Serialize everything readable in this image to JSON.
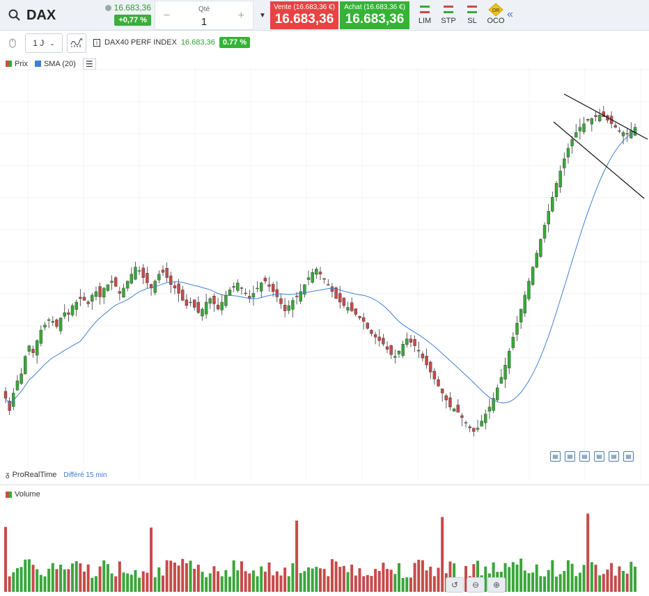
{
  "header": {
    "ticker": "DAX",
    "mini_price": "16.683,36",
    "mini_change": "+0,77 %",
    "qty_label": "Qté",
    "qty_value": "1",
    "qty_minus": "−",
    "qty_plus": "+",
    "sell_label": "Vente (16.683,36 €)",
    "sell_price": "16.683,36",
    "buy_label": "Achat (16.683,36 €)",
    "buy_price": "16.683,36",
    "orders": [
      "LIM",
      "STP",
      "SL",
      "OCO"
    ],
    "oco_badge": "OR"
  },
  "toolbar": {
    "period": "1 J",
    "instrument_name": "DAX40 PERF INDEX",
    "instrument_price": "16.683,36",
    "instrument_change": "0.77 %"
  },
  "legend": {
    "price": "Prix",
    "sma": "SMA (20)"
  },
  "source": {
    "provider": "ProRealTime",
    "delay": "Différé 15 min"
  },
  "volume_legend": "Volume",
  "colors": {
    "up": "#3aa63a",
    "down": "#c74a4a",
    "sma": "#3f7fd6",
    "buy": "#35b335",
    "sell": "#e64343",
    "accent": "#3c7bd1"
  },
  "icons": [
    "search-icon",
    "status-icon",
    "chevron-down-icon",
    "lim-order-icon",
    "stp-order-icon",
    "sl-order-icon",
    "oco-order-icon",
    "collapse-left-icon",
    "mouse-icon",
    "indicator-icon",
    "info-icon",
    "list-icon",
    "chart-style-icon",
    "undo-icon",
    "zoom-out-icon",
    "zoom-in-icon"
  ],
  "chart_data": {
    "type": "candlestick",
    "series": [
      {
        "name": "Prix",
        "values": [
          14750,
          14680,
          14780,
          14850,
          14890,
          14990,
          15050,
          15010,
          15080,
          15140,
          15170,
          15200,
          15190,
          15160,
          15210,
          15240,
          15230,
          15280,
          15300,
          15320,
          15310,
          15290,
          15340,
          15360,
          15330,
          15380,
          15400,
          15420,
          15390,
          15350,
          15380,
          15420,
          15460,
          15500,
          15480,
          15440,
          15410,
          15380,
          15420,
          15460,
          15470,
          15440,
          15400,
          15380,
          15350,
          15310,
          15280,
          15300,
          15270,
          15240,
          15260,
          15300,
          15320,
          15290,
          15260,
          15300,
          15340,
          15370,
          15390,
          15410,
          15380,
          15350,
          15320,
          15350,
          15380,
          15410,
          15420,
          15390,
          15360,
          15330,
          15290,
          15250,
          15280,
          15310,
          15330,
          15360,
          15400,
          15440,
          15470,
          15490,
          15460,
          15430,
          15400,
          15360,
          15320,
          15300,
          15280,
          15270,
          15250,
          15230,
          15210,
          15190,
          15150,
          15120,
          15100,
          15080,
          15060,
          15030,
          15000,
          14990,
          15020,
          15060,
          15090,
          15070,
          15050,
          15020,
          14980,
          14940,
          14900,
          14860,
          14820,
          14780,
          14740,
          14700,
          14690,
          14670,
          14640,
          14610,
          14580,
          14560,
          14580,
          14620,
          14660,
          14700,
          14750,
          14810,
          14870,
          14940,
          15020,
          15100,
          15180,
          15260,
          15340,
          15420,
          15500,
          15580,
          15660,
          15740,
          15820,
          15900,
          15980,
          16050,
          16120,
          16180,
          16230,
          16270,
          16300,
          16320,
          16340,
          16350,
          16360,
          16370,
          16360,
          16340,
          16320,
          16300,
          16280,
          16270,
          16260,
          16280,
          16300
        ]
      }
    ],
    "sma_label": "SMA (20)",
    "volume_label": "Volume"
  }
}
